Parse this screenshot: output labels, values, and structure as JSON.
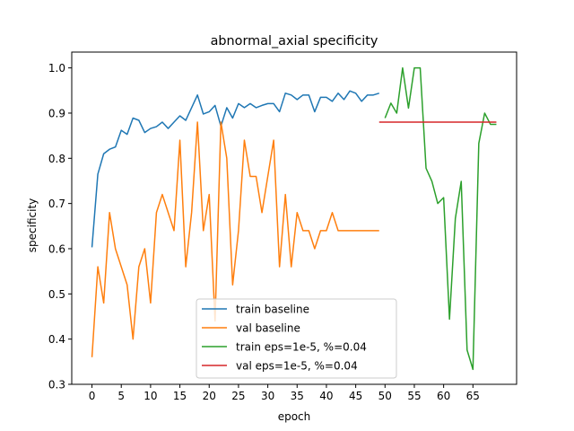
{
  "chart_data": {
    "type": "line",
    "title": "abnormal_axial specificity",
    "xlabel": "epoch",
    "ylabel": "specificity",
    "xlim": [
      -3.45,
      72.45
    ],
    "ylim": [
      0.3,
      1.035
    ],
    "xticks": [
      0,
      5,
      10,
      15,
      20,
      25,
      30,
      35,
      40,
      45,
      50,
      55,
      60,
      65
    ],
    "yticks": [
      0.3,
      0.4,
      0.5,
      0.6,
      0.7,
      0.8,
      0.9,
      1.0
    ],
    "ytick_labels": [
      "0.3",
      "0.4",
      "0.5",
      "0.6",
      "0.7",
      "0.8",
      "0.9",
      "1.0"
    ],
    "grid": false,
    "legend_position": "lower-center",
    "series": [
      {
        "name": "train baseline",
        "color": "#1f77b4",
        "x": [
          0,
          1,
          2,
          3,
          4,
          5,
          6,
          7,
          8,
          9,
          10,
          11,
          12,
          13,
          14,
          15,
          16,
          17,
          18,
          19,
          20,
          21,
          22,
          23,
          24,
          25,
          26,
          27,
          28,
          29,
          30,
          31,
          32,
          33,
          34,
          35,
          36,
          37,
          38,
          39,
          40,
          41,
          42,
          43,
          44,
          45,
          46,
          47,
          48,
          49
        ],
        "y": [
          0.603,
          0.765,
          0.81,
          0.82,
          0.825,
          0.862,
          0.853,
          0.889,
          0.884,
          0.857,
          0.866,
          0.87,
          0.88,
          0.866,
          0.88,
          0.894,
          0.884,
          0.912,
          0.94,
          0.898,
          0.903,
          0.917,
          0.871,
          0.912,
          0.889,
          0.921,
          0.912,
          0.921,
          0.912,
          0.917,
          0.921,
          0.921,
          0.903,
          0.944,
          0.94,
          0.93,
          0.94,
          0.94,
          0.903,
          0.935,
          0.935,
          0.926,
          0.944,
          0.93,
          0.949,
          0.944,
          0.926,
          0.94,
          0.94,
          0.944
        ]
      },
      {
        "name": "val baseline",
        "color": "#ff7f0e",
        "x": [
          0,
          1,
          2,
          3,
          4,
          5,
          6,
          7,
          8,
          9,
          10,
          11,
          12,
          13,
          14,
          15,
          16,
          17,
          18,
          19,
          20,
          21,
          22,
          23,
          24,
          25,
          26,
          27,
          28,
          29,
          30,
          31,
          32,
          33,
          34,
          35,
          36,
          37,
          38,
          39,
          40,
          41,
          42,
          43,
          44,
          45,
          46,
          47,
          48,
          49
        ],
        "y": [
          0.36,
          0.56,
          0.48,
          0.68,
          0.6,
          0.56,
          0.52,
          0.4,
          0.56,
          0.6,
          0.48,
          0.68,
          0.72,
          0.68,
          0.64,
          0.84,
          0.56,
          0.68,
          0.88,
          0.64,
          0.72,
          0.44,
          0.88,
          0.8,
          0.52,
          0.64,
          0.84,
          0.76,
          0.76,
          0.68,
          0.76,
          0.84,
          0.56,
          0.72,
          0.56,
          0.68,
          0.64,
          0.64,
          0.6,
          0.64,
          0.64,
          0.68,
          0.64,
          0.64,
          0.64,
          0.64,
          0.64,
          0.64,
          0.64,
          0.64
        ]
      },
      {
        "name": "train eps=1e-5, %=0.04",
        "color": "#2ca02c",
        "x": [
          50,
          51,
          52,
          53,
          54,
          55,
          56,
          57,
          58,
          59,
          60,
          61,
          62,
          63,
          64,
          65,
          66,
          67,
          68,
          69
        ],
        "y": [
          0.889,
          0.922,
          0.9,
          1.0,
          0.911,
          1.0,
          1.0,
          0.778,
          0.749,
          0.7,
          0.713,
          0.444,
          0.667,
          0.749,
          0.376,
          0.333,
          0.833,
          0.9,
          0.875,
          0.875
        ]
      },
      {
        "name": "val eps=1e-5, %=0.04",
        "color": "#d62728",
        "x": [
          49,
          50,
          51,
          52,
          53,
          54,
          55,
          56,
          57,
          58,
          59,
          60,
          61,
          62,
          63,
          64,
          65,
          66,
          67,
          68,
          69
        ],
        "y": [
          0.88,
          0.88,
          0.88,
          0.88,
          0.88,
          0.88,
          0.88,
          0.88,
          0.88,
          0.88,
          0.88,
          0.88,
          0.88,
          0.88,
          0.88,
          0.88,
          0.88,
          0.88,
          0.88,
          0.88,
          0.88
        ]
      }
    ]
  }
}
